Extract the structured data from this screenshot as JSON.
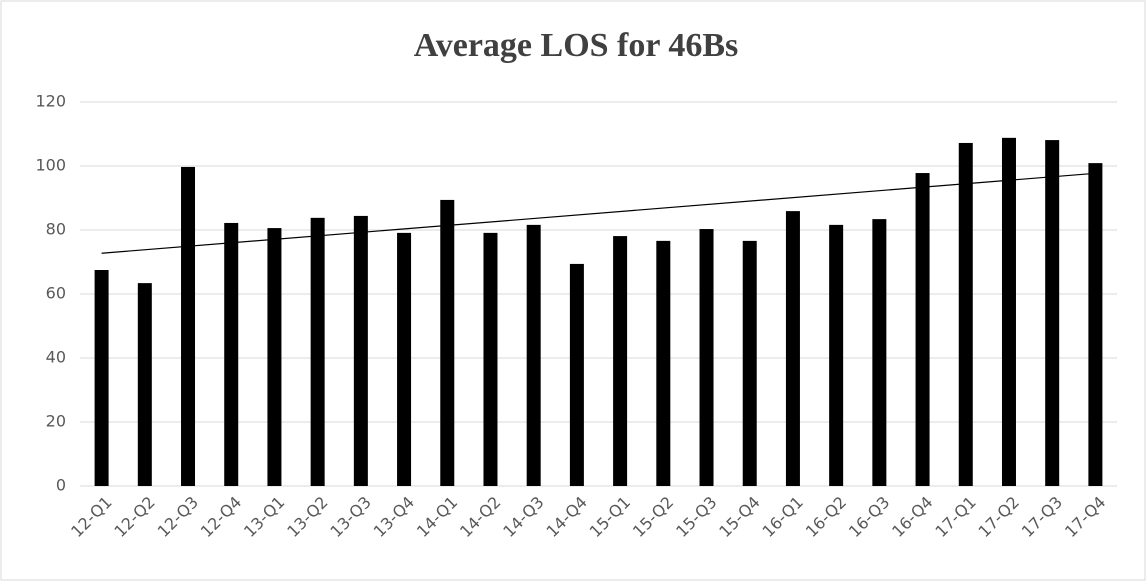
{
  "chart_data": {
    "type": "bar",
    "title": "Average LOS for 46Bs",
    "categories": [
      "12-Q1",
      "12-Q2",
      "12-Q3",
      "12-Q4",
      "13-Q1",
      "13-Q2",
      "13-Q3",
      "13-Q4",
      "14-Q1",
      "14-Q2",
      "14-Q3",
      "14-Q4",
      "15-Q1",
      "15-Q2",
      "15-Q3",
      "15-Q4",
      "16-Q1",
      "16-Q2",
      "16-Q3",
      "16-Q4",
      "17-Q1",
      "17-Q2",
      "17-Q3",
      "17-Q4"
    ],
    "values": [
      67.5,
      63.4,
      99.7,
      82.2,
      80.6,
      83.8,
      84.4,
      79.1,
      89.4,
      79.1,
      81.6,
      69.4,
      78.1,
      76.6,
      80.3,
      76.6,
      85.9,
      81.6,
      83.4,
      97.8,
      107.2,
      108.8,
      108.1,
      100.9
    ],
    "color": "#000000",
    "trendline": "linear",
    "ylim": [
      0,
      120
    ],
    "yticks": [
      0,
      20,
      40,
      60,
      80,
      100,
      120
    ],
    "grid": true
  }
}
